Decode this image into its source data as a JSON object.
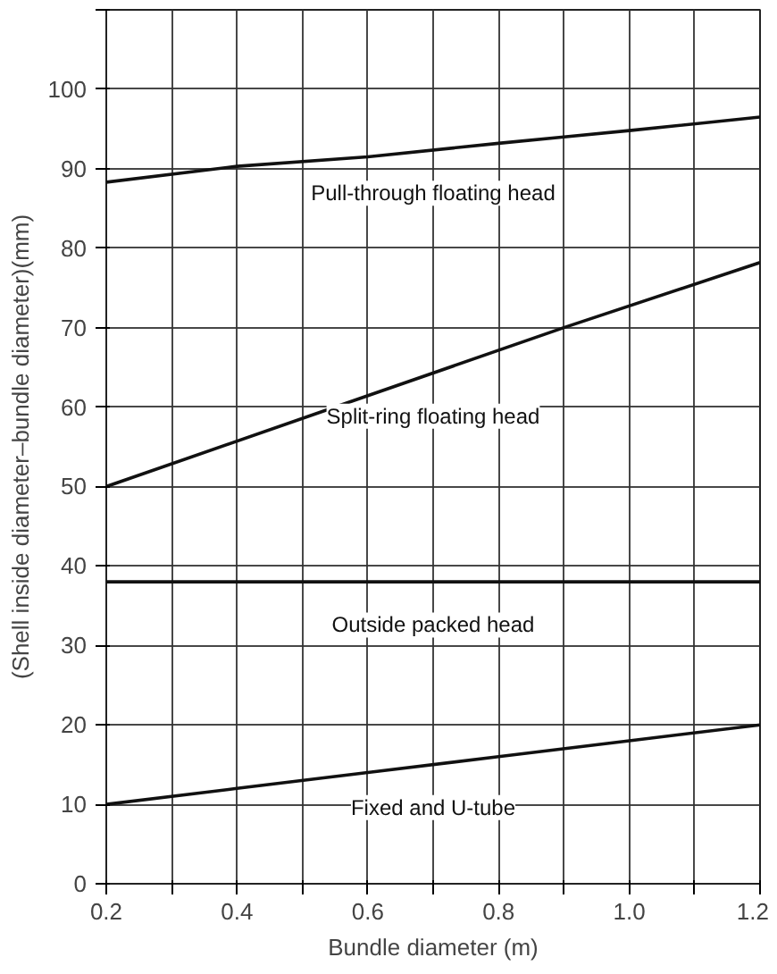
{
  "chart_data": {
    "type": "line",
    "xlabel": "Bundle diameter (m)",
    "ylabel": "(Shell inside diameter–bundle diameter)(mm)",
    "xlim": [
      0.2,
      1.2
    ],
    "ylim": [
      0,
      110
    ],
    "xticks": [
      0.2,
      {
        "value": 0.3,
        "label": null
      },
      0.4,
      {
        "value": 0.5,
        "label": null
      },
      0.6,
      {
        "value": 0.7,
        "label": null
      },
      0.8,
      {
        "value": 0.9,
        "label": null
      },
      {
        "value": 1.0,
        "label": "1.0"
      },
      {
        "value": 1.1,
        "label": null
      },
      1.2
    ],
    "yticks": [
      0,
      10,
      20,
      30,
      40,
      50,
      60,
      70,
      80,
      90,
      100,
      {
        "value": 110,
        "label": null
      }
    ],
    "grid": true,
    "marker": "none",
    "line_style": "solid",
    "series": [
      {
        "name": "Pull-through floating head",
        "color": "#111111",
        "x": [
          0.2,
          0.4,
          0.6,
          0.8,
          0.9,
          1.0,
          1.2
        ],
        "values": [
          88.3,
          90.3,
          91.5,
          93.2,
          94,
          94.8,
          96.5
        ]
      },
      {
        "name": "Split-ring floating head",
        "color": "#111111",
        "x": [
          0.2,
          0.55,
          0.9,
          1.2
        ],
        "values": [
          50,
          60,
          70,
          78.2
        ]
      },
      {
        "name": "Outside packed head",
        "color": "#111111",
        "x": [
          0.2,
          1.2
        ],
        "values": [
          38,
          38
        ]
      },
      {
        "name": "Fixed and U-tube",
        "color": "#111111",
        "x": [
          0.2,
          0.4,
          0.6,
          0.8,
          1.0,
          1.2
        ],
        "values": [
          10,
          12,
          14,
          16,
          18,
          20
        ]
      }
    ]
  }
}
